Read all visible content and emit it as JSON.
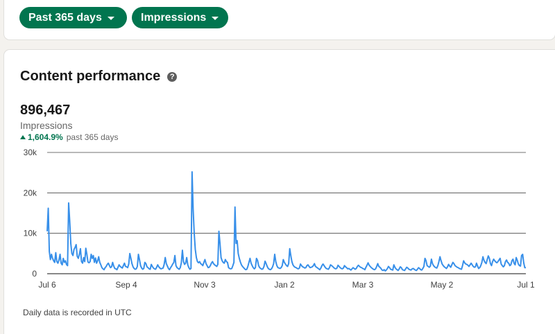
{
  "filters": {
    "period_label": "Past 365 days",
    "metric_label": "Impressions"
  },
  "card": {
    "title": "Content performance",
    "help_icon_glyph": "?",
    "total": "896,467",
    "metric_name": "Impressions",
    "change": "1,604.9%",
    "change_label": "past 365 days",
    "footnote": "Daily data is recorded in UTC"
  },
  "colors": {
    "accent": "#01754f",
    "line": "#378fe9",
    "grid": "#404040"
  },
  "chart_data": {
    "type": "line",
    "title": "",
    "xlabel": "",
    "ylabel": "",
    "ylim": [
      0,
      30000
    ],
    "y_ticks": [
      0,
      10000,
      20000,
      30000
    ],
    "y_tick_labels": [
      "0",
      "10k",
      "20k",
      "30k"
    ],
    "x_ticks": [
      "Jul 6",
      "Sep 4",
      "Nov 3",
      "Jan 2",
      "Mar 3",
      "May 2",
      "Jul 1"
    ],
    "grid": true,
    "series": [
      {
        "name": "Impressions",
        "values": [
          10500,
          16200,
          5500,
          3500,
          4800,
          3800,
          3200,
          2800,
          5200,
          3000,
          2600,
          3400,
          4800,
          2600,
          2200,
          3800,
          2800,
          3200,
          2300,
          2000,
          17500,
          13000,
          7500,
          5000,
          4500,
          6000,
          6500,
          7200,
          4300,
          3800,
          4800,
          6200,
          3000,
          2600,
          4000,
          3000,
          6300,
          4800,
          2900,
          2700,
          3000,
          4800,
          3800,
          4500,
          2800,
          3900,
          2600,
          3200,
          4200,
          2800,
          2200,
          1500,
          1200,
          1000,
          1500,
          1800,
          2300,
          2600,
          2000,
          1500,
          1700,
          2800,
          1900,
          1300,
          1200,
          1000,
          1600,
          2200,
          1800,
          1600,
          1400,
          2000,
          2600,
          1800,
          1700,
          1500,
          2400,
          5000,
          3800,
          2500,
          1700,
          1300,
          1100,
          1200,
          1800,
          4800,
          3500,
          2000,
          1400,
          1100,
          1300,
          2800,
          2500,
          1700,
          1500,
          1200,
          1100,
          2300,
          1800,
          1400,
          1200,
          1100,
          1600,
          2200,
          1700,
          1400,
          1200,
          1300,
          1400,
          2300,
          4000,
          2500,
          1900,
          1300,
          1000,
          1500,
          1900,
          2400,
          2800,
          4500,
          2000,
          1500,
          1300,
          1100,
          1500,
          2700,
          5800,
          3000,
          2300,
          2600,
          4000,
          2200,
          1500,
          1100,
          1300,
          25200,
          16000,
          10000,
          6000,
          4000,
          3000,
          2700,
          3000,
          2500,
          2300,
          2000,
          2800,
          3500,
          2500,
          2000,
          1500,
          1600,
          2000,
          2600,
          3000,
          2500,
          2200,
          2000,
          1800,
          2300,
          10500,
          7500,
          4000,
          3200,
          2800,
          2600,
          3500,
          3000,
          2800,
          1500,
          1300,
          1200,
          1300,
          2000,
          2800,
          16500,
          7500,
          8200,
          5000,
          3800,
          2900,
          2200,
          1800,
          1500,
          1200,
          1000,
          1100,
          1800,
          2800,
          3800,
          2600,
          2000,
          1500,
          1200,
          1500,
          3800,
          3300,
          2000,
          1500,
          1300,
          1100,
          1200,
          1800,
          3100,
          2500,
          1800,
          1300,
          1100,
          1000,
          1200,
          1700,
          2500,
          4800,
          3000,
          2000,
          1500,
          1400,
          1300,
          1500,
          2000,
          3500,
          2800,
          2400,
          2000,
          1800,
          2500,
          6200,
          4500,
          3000,
          2200,
          1800,
          1600,
          1500,
          1300,
          1200,
          1400,
          2400,
          2000,
          1700,
          1600,
          1400,
          1500,
          2000,
          2200,
          1800,
          1500,
          1600,
          1700,
          2000,
          2500,
          1800,
          1600,
          1400,
          1200,
          1000,
          1400,
          2000,
          2400,
          2000,
          1600,
          1300,
          1200,
          1100,
          1500,
          2200,
          2000,
          1800,
          1500,
          1300,
          1200,
          1400,
          2100,
          1800,
          1500,
          1300,
          1200,
          1400,
          2000,
          1700,
          1500,
          1200,
          1300,
          1100,
          900,
          1200,
          1500,
          1300,
          1100,
          1300,
          1800,
          2100,
          1800,
          1600,
          1500,
          1300,
          1200,
          1000,
          1600,
          2100,
          2700,
          2100,
          1800,
          1500,
          1300,
          1100,
          1000,
          1200,
          1800,
          2500,
          1800,
          1600,
          1300,
          900,
          800,
          1000,
          700,
          900,
          1300,
          1800,
          1500,
          1100,
          1000,
          900,
          2200,
          1600,
          1200,
          1000,
          800,
          1200,
          1700,
          1500,
          1000,
          900,
          800,
          1200,
          1600,
          1400,
          1100,
          1000,
          900,
          1200,
          1300,
          1100,
          900,
          800,
          1100,
          1500,
          1300,
          1000,
          900,
          1300,
          1800,
          3800,
          3200,
          2000,
          1800,
          1600,
          1900,
          3600,
          2500,
          2000,
          1700,
          1500,
          1400,
          2000,
          3000,
          4200,
          3200,
          2400,
          2000,
          1700,
          1500,
          1300,
          1700,
          2300,
          1900,
          1600,
          2200,
          2800,
          2500,
          2000,
          1800,
          1600,
          1500,
          1300,
          1200,
          1100,
          2000,
          3200,
          2700,
          2400,
          2300,
          2100,
          1800,
          2200,
          2600,
          2200,
          1800,
          1600,
          1700,
          2600,
          1900,
          1300,
          1500,
          2000,
          2800,
          4200,
          3300,
          2800,
          2500,
          3500,
          4400,
          3800,
          2500,
          2000,
          3000,
          3600,
          3200,
          2900,
          2700,
          3000,
          3400,
          3800,
          2400,
          2000,
          1700,
          2000,
          3000,
          3400,
          2800,
          2600,
          2000,
          2200,
          3200,
          3600,
          2600,
          2200,
          4000,
          3300,
          2400,
          2000,
          1900,
          4500,
          4800,
          2700,
          1500,
          1500
        ]
      }
    ]
  }
}
